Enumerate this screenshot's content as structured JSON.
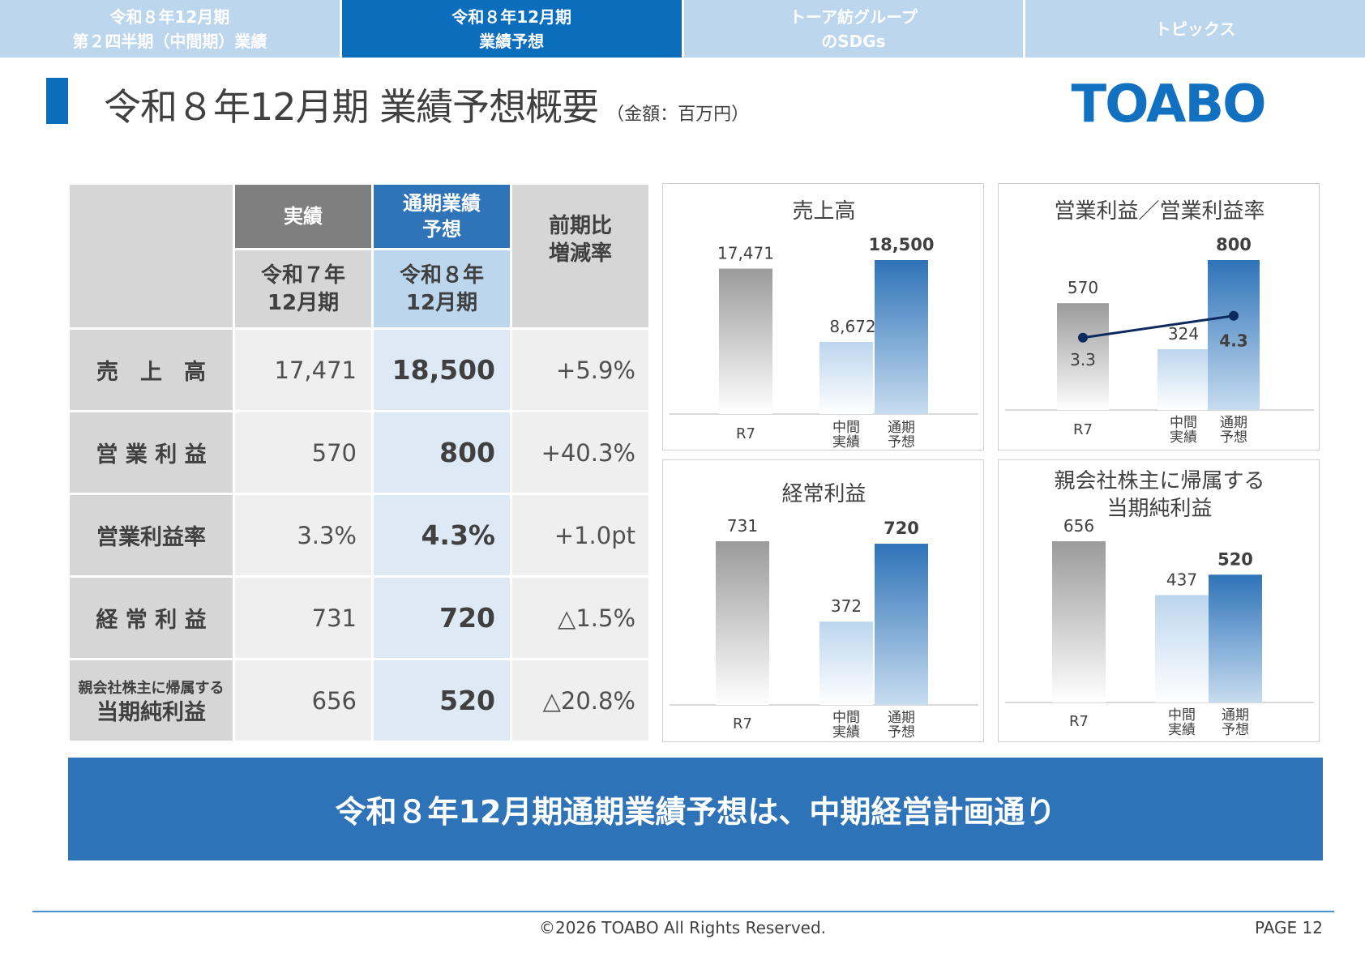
{
  "tabs": [
    {
      "label": "令和８年12月期\n第２四半期（中間期）業績",
      "active": false
    },
    {
      "label": "令和８年12月期\n業績予想",
      "active": true
    },
    {
      "label": "トーア紡グループ\nのSDGs",
      "active": false
    },
    {
      "label": "トピックス",
      "active": false
    }
  ],
  "title": {
    "main": "令和８年12月期 業績予想概要",
    "unit": "（金額：百万円）"
  },
  "logo": {
    "text": "TOABO"
  },
  "table": {
    "header": {
      "col1_top": "実績",
      "col1_bottom": "令和７年\n12月期",
      "col2_top": "通期業績\n予想",
      "col2_bottom": "令和８年\n12月期",
      "col3": "前期比\n増減率"
    },
    "rows": [
      {
        "label": "売　上　高",
        "actual": "17,471",
        "forecast": "18,500",
        "change": "+5.9%"
      },
      {
        "label": "営 業 利 益",
        "actual": "570",
        "forecast": "800",
        "change": "+40.3%"
      },
      {
        "label": "営業利益率",
        "actual": "3.3%",
        "forecast": "4.3%",
        "change": "+1.0pt"
      },
      {
        "label": "経 常 利 益",
        "actual": "731",
        "forecast": "720",
        "change": "△1.5%"
      },
      {
        "label_small": "親会社株主に帰属する",
        "label": "当期純利益",
        "actual": "656",
        "forecast": "520",
        "change": "△20.8%"
      }
    ]
  },
  "chart_data": [
    {
      "type": "bar",
      "title": "売上高",
      "categories": [
        "R7",
        "中間\n実績",
        "通期\n予想"
      ],
      "values": [
        17471,
        8672,
        18500
      ],
      "value_labels": [
        "17,471",
        "8,672",
        "18,500"
      ],
      "colors": [
        "#9e9e9e",
        "#bcd6ee",
        "#2e73b8"
      ]
    },
    {
      "type": "bar",
      "title": "営業利益／営業利益率",
      "categories": [
        "R7",
        "中間\n実績",
        "通期\n予想"
      ],
      "values": [
        570,
        324,
        800
      ],
      "value_labels": [
        "570",
        "324",
        "800"
      ],
      "line_values": [
        3.3,
        4.3
      ],
      "line_labels": [
        "3.3",
        "4.3"
      ],
      "colors": [
        "#9e9e9e",
        "#bcd6ee",
        "#2e73b8"
      ],
      "line_color": "#0d2a5e"
    },
    {
      "type": "bar",
      "title": "経常利益",
      "categories": [
        "R7",
        "中間\n実績",
        "通期\n予想"
      ],
      "values": [
        731,
        372,
        720
      ],
      "value_labels": [
        "731",
        "372",
        "720"
      ],
      "colors": [
        "#9e9e9e",
        "#bcd6ee",
        "#2e73b8"
      ]
    },
    {
      "type": "bar",
      "title": "親会社株主に帰属する\n当期純利益",
      "categories": [
        "R7",
        "中間\n実績",
        "通期\n予想"
      ],
      "values": [
        656,
        437,
        520
      ],
      "value_labels": [
        "656",
        "437",
        "520"
      ],
      "colors": [
        "#9e9e9e",
        "#bcd6ee",
        "#2e73b8"
      ]
    }
  ],
  "banner": {
    "text": "令和８年12月期通期業績予想は、中期経営計画通り"
  },
  "footer": {
    "copyright": "©2026 TOABO All Rights Reserved.",
    "page": "PAGE  12"
  }
}
